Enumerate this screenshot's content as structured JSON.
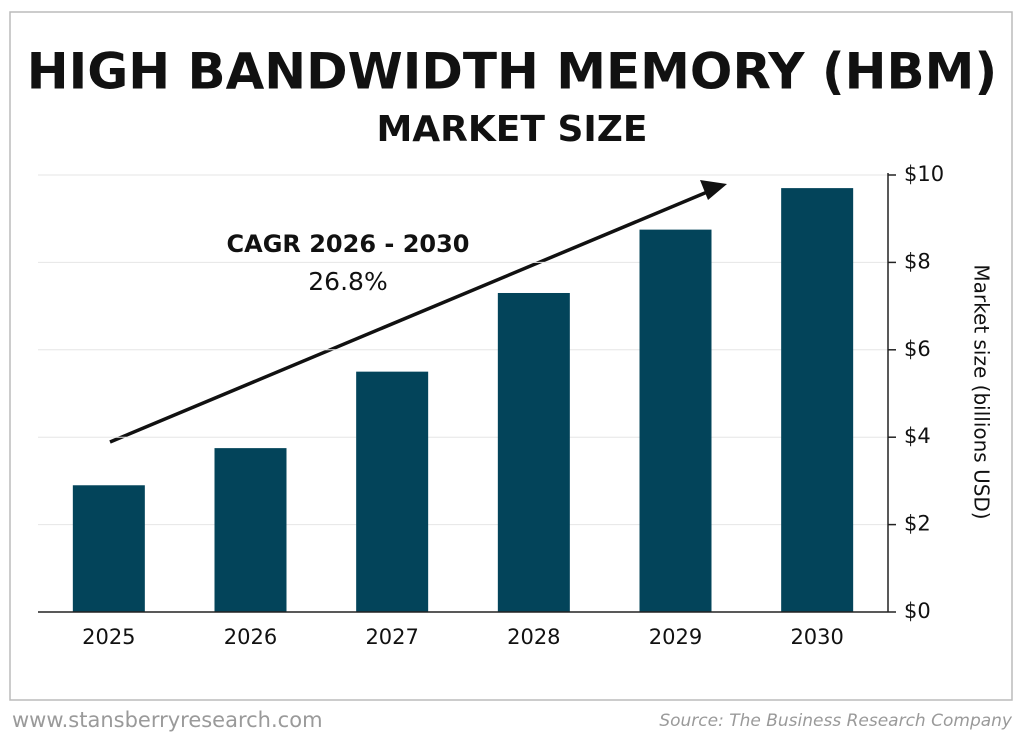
{
  "chart_data": {
    "type": "bar",
    "title": "HIGH BANDWIDTH MEMORY (HBM)",
    "subtitle": "MARKET SIZE",
    "y_label": "Market size (billions USD)",
    "categories": [
      "2025",
      "2026",
      "2027",
      "2028",
      "2029",
      "2030"
    ],
    "values": [
      2.9,
      3.75,
      5.5,
      7.3,
      8.75,
      9.7
    ],
    "color": "#03445a",
    "ylim": [
      0,
      10
    ],
    "yticks": [
      {
        "value": 0,
        "label": "$0"
      },
      {
        "value": 2,
        "label": "$2"
      },
      {
        "value": 4,
        "label": "$4"
      },
      {
        "value": 6,
        "label": "$6"
      },
      {
        "value": 8,
        "label": "$8"
      },
      {
        "value": 10,
        "label": "$10"
      }
    ],
    "grid": true,
    "annotations": [
      "CAGR 2026 - 2030",
      "26.8%"
    ],
    "footer_left": "www.stansberryresearch.com",
    "source": "Source: The Business Research Company"
  }
}
